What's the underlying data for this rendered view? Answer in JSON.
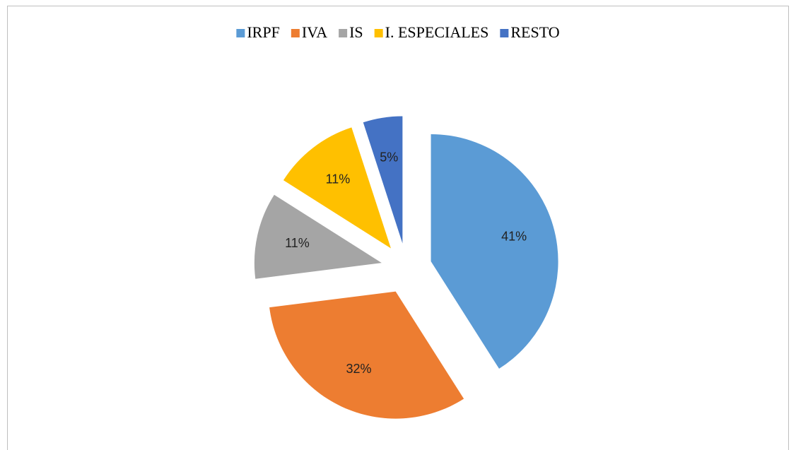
{
  "chart_data": {
    "type": "pie",
    "categories": [
      "IRPF",
      "IVA",
      "IS",
      "I. ESPECIALES",
      "RESTO"
    ],
    "values": [
      41,
      32,
      11,
      11,
      5
    ],
    "value_labels": [
      "41%",
      "32%",
      "11%",
      "11%",
      "5%"
    ],
    "colors": [
      "#5b9bd5",
      "#ed7d31",
      "#a5a5a5",
      "#ffc000",
      "#4472c4"
    ],
    "legend": "top"
  }
}
